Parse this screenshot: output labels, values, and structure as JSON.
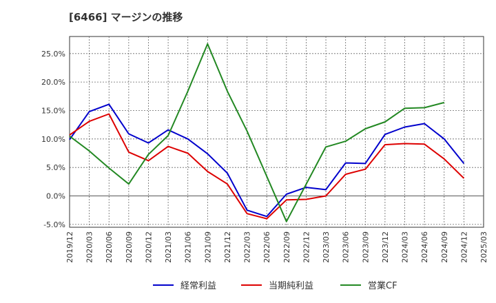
{
  "chart_data": {
    "type": "line",
    "title": "[6466]  マージンの推移",
    "xlabel": "",
    "ylabel": "",
    "x": [
      "2019/12",
      "2020/03",
      "2020/06",
      "2020/09",
      "2020/12",
      "2021/03",
      "2021/06",
      "2021/09",
      "2021/12",
      "2022/03",
      "2022/06",
      "2022/09",
      "2022/12",
      "2023/03",
      "2023/06",
      "2023/09",
      "2023/12",
      "2024/03",
      "2024/06",
      "2024/09",
      "2024/12"
    ],
    "x_ticks": [
      "2019/12",
      "2020/03",
      "2020/06",
      "2020/09",
      "2020/12",
      "2021/03",
      "2021/06",
      "2021/09",
      "2021/12",
      "2022/03",
      "2022/06",
      "2022/09",
      "2022/12",
      "2023/03",
      "2023/06",
      "2023/09",
      "2023/12",
      "2024/03",
      "2024/06",
      "2024/09",
      "2024/12",
      "2025/03"
    ],
    "ylim": [
      -5.5,
      28
    ],
    "y_ticks": [
      -5,
      0,
      5,
      10,
      15,
      20,
      25
    ],
    "y_tick_labels": [
      "-5.0%",
      "0.0%",
      "5.0%",
      "10.0%",
      "15.0%",
      "20.0%",
      "25.0%"
    ],
    "grid": true,
    "legend_position": "bottom",
    "series": [
      {
        "name": "経常利益",
        "color": "#0000cc",
        "values": [
          9.9,
          14.8,
          16.1,
          10.9,
          9.3,
          11.6,
          10.0,
          7.4,
          4.0,
          -2.5,
          -3.6,
          0.3,
          1.5,
          1.1,
          5.8,
          5.7,
          10.8,
          12.1,
          12.7,
          10.0,
          5.7
        ]
      },
      {
        "name": "当期純利益",
        "color": "#dd0000",
        "values": [
          10.7,
          13.1,
          14.4,
          7.7,
          6.2,
          8.7,
          7.5,
          4.3,
          2.1,
          -3.1,
          -4.0,
          -0.7,
          -0.6,
          0.0,
          3.8,
          4.7,
          9.0,
          9.2,
          9.1,
          6.5,
          3.1
        ]
      },
      {
        "name": "営業CF",
        "color": "#228822",
        "values": [
          10.5,
          7.9,
          4.9,
          2.1,
          7.3,
          10.6,
          18.4,
          26.7,
          18.4,
          11.4,
          null,
          -4.5,
          null,
          8.6,
          9.6,
          11.8,
          13.0,
          15.4,
          15.5,
          16.4,
          null
        ]
      }
    ]
  }
}
